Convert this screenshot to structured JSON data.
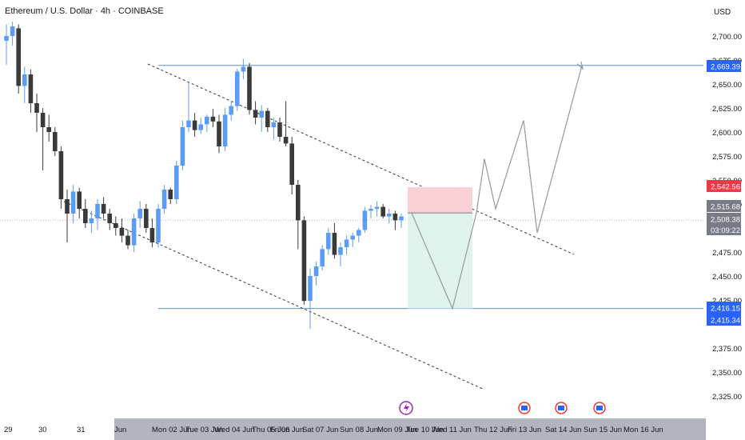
{
  "header": {
    "title": "Ethereum / U.S. Dollar · 4h · COINBASE",
    "currency": "USD"
  },
  "colors": {
    "up": "#5b9cf6",
    "down": "#3a3a3a",
    "level_line": "#5b8fd9",
    "resistance_badge": "#2962ff",
    "price_badge_red": "#f23645",
    "price_badge_gray": "#787b86",
    "short_zone_red": "#f8d2d5",
    "short_zone_green": "#dff2ec"
  },
  "price_axis": {
    "labels": [
      "2,700.00",
      "2,675.00",
      "2,650.00",
      "2,625.00",
      "2,600.00",
      "2,575.00",
      "2,550.00",
      "2,525.00",
      "2,475.00",
      "2,450.00",
      "2,425.00",
      "2,375.00",
      "2,350.00",
      "2,325.00"
    ],
    "badges": [
      {
        "value": 2669.39,
        "text": "2,669.39",
        "color": "#2962ff"
      },
      {
        "value": 2542.56,
        "text": "2,542.56",
        "color": "#f23645"
      },
      {
        "value": 2515.68,
        "text": "2,515.68",
        "color": "#787b86"
      },
      {
        "value": 2508.38,
        "text": "2,508.38",
        "color": "#787b86"
      },
      {
        "value": 2416.15,
        "text": "2,416.15",
        "color": "#2962ff"
      },
      {
        "value": 2415.34,
        "text": "2,415.34",
        "color": "#2962ff"
      }
    ],
    "countdown": "03:09:22"
  },
  "time_axis": {
    "labels": [
      "29",
      "30",
      "31",
      "Jun",
      "Mon 02 Jun",
      "Tue 03 Jun",
      "Wed 04 Jun",
      "Thu 05 Jun",
      "Fri 06 Jun",
      "Sat 07 Jun",
      "Sun 08 Jun",
      "Mon 09 Jun",
      "Tue 10 Jun",
      "Wed 11 Jun",
      "Thu 12 Jun",
      "Fri 13 Jun",
      "Sat 14 Jun",
      "Sun 15 Jun",
      "Mon 16 Jun"
    ]
  },
  "chart_data": {
    "type": "candlestick",
    "title": "Ethereum / U.S. Dollar · 4h · COINBASE",
    "ylabel": "USD",
    "ylim": [
      2305,
      2720
    ],
    "candles": [
      {
        "o": 2695,
        "h": 2712,
        "l": 2670,
        "c": 2700
      },
      {
        "o": 2700,
        "h": 2715,
        "l": 2690,
        "c": 2710
      },
      {
        "o": 2708,
        "h": 2712,
        "l": 2640,
        "c": 2648
      },
      {
        "o": 2648,
        "h": 2668,
        "l": 2630,
        "c": 2660
      },
      {
        "o": 2660,
        "h": 2665,
        "l": 2620,
        "c": 2630
      },
      {
        "o": 2630,
        "h": 2640,
        "l": 2600,
        "c": 2620
      },
      {
        "o": 2620,
        "h": 2625,
        "l": 2560,
        "c": 2605
      },
      {
        "o": 2605,
        "h": 2618,
        "l": 2590,
        "c": 2600
      },
      {
        "o": 2600,
        "h": 2605,
        "l": 2575,
        "c": 2580
      },
      {
        "o": 2580,
        "h": 2585,
        "l": 2520,
        "c": 2530
      },
      {
        "o": 2530,
        "h": 2540,
        "l": 2485,
        "c": 2515
      },
      {
        "o": 2515,
        "h": 2545,
        "l": 2505,
        "c": 2538
      },
      {
        "o": 2538,
        "h": 2542,
        "l": 2510,
        "c": 2520
      },
      {
        "o": 2520,
        "h": 2530,
        "l": 2500,
        "c": 2505
      },
      {
        "o": 2505,
        "h": 2518,
        "l": 2495,
        "c": 2510
      },
      {
        "o": 2510,
        "h": 2530,
        "l": 2498,
        "c": 2525
      },
      {
        "o": 2525,
        "h": 2532,
        "l": 2510,
        "c": 2515
      },
      {
        "o": 2515,
        "h": 2520,
        "l": 2498,
        "c": 2505
      },
      {
        "o": 2505,
        "h": 2512,
        "l": 2492,
        "c": 2500
      },
      {
        "o": 2500,
        "h": 2510,
        "l": 2485,
        "c": 2492
      },
      {
        "o": 2492,
        "h": 2498,
        "l": 2478,
        "c": 2482
      },
      {
        "o": 2482,
        "h": 2515,
        "l": 2475,
        "c": 2510
      },
      {
        "o": 2510,
        "h": 2528,
        "l": 2500,
        "c": 2520
      },
      {
        "o": 2520,
        "h": 2525,
        "l": 2495,
        "c": 2500
      },
      {
        "o": 2500,
        "h": 2510,
        "l": 2480,
        "c": 2485
      },
      {
        "o": 2485,
        "h": 2525,
        "l": 2480,
        "c": 2520
      },
      {
        "o": 2520,
        "h": 2545,
        "l": 2515,
        "c": 2540
      },
      {
        "o": 2540,
        "h": 2542,
        "l": 2525,
        "c": 2530
      },
      {
        "o": 2530,
        "h": 2570,
        "l": 2525,
        "c": 2565
      },
      {
        "o": 2565,
        "h": 2612,
        "l": 2560,
        "c": 2605
      },
      {
        "o": 2605,
        "h": 2652,
        "l": 2600,
        "c": 2612
      },
      {
        "o": 2612,
        "h": 2620,
        "l": 2595,
        "c": 2602
      },
      {
        "o": 2602,
        "h": 2615,
        "l": 2598,
        "c": 2608
      },
      {
        "o": 2608,
        "h": 2618,
        "l": 2600,
        "c": 2616
      },
      {
        "o": 2616,
        "h": 2624,
        "l": 2605,
        "c": 2611
      },
      {
        "o": 2611,
        "h": 2618,
        "l": 2578,
        "c": 2585
      },
      {
        "o": 2585,
        "h": 2625,
        "l": 2580,
        "c": 2618
      },
      {
        "o": 2618,
        "h": 2632,
        "l": 2612,
        "c": 2627
      },
      {
        "o": 2627,
        "h": 2666,
        "l": 2622,
        "c": 2663
      },
      {
        "o": 2663,
        "h": 2676,
        "l": 2655,
        "c": 2668
      },
      {
        "o": 2668,
        "h": 2672,
        "l": 2618,
        "c": 2623
      },
      {
        "o": 2623,
        "h": 2632,
        "l": 2608,
        "c": 2615
      },
      {
        "o": 2615,
        "h": 2628,
        "l": 2600,
        "c": 2622
      },
      {
        "o": 2622,
        "h": 2625,
        "l": 2600,
        "c": 2605
      },
      {
        "o": 2605,
        "h": 2615,
        "l": 2592,
        "c": 2610
      },
      {
        "o": 2610,
        "h": 2615,
        "l": 2590,
        "c": 2595
      },
      {
        "o": 2595,
        "h": 2632,
        "l": 2585,
        "c": 2588
      },
      {
        "o": 2588,
        "h": 2595,
        "l": 2535,
        "c": 2545
      },
      {
        "o": 2545,
        "h": 2550,
        "l": 2478,
        "c": 2508
      },
      {
        "o": 2508,
        "h": 2512,
        "l": 2420,
        "c": 2424
      },
      {
        "o": 2424,
        "h": 2458,
        "l": 2395,
        "c": 2450
      },
      {
        "o": 2450,
        "h": 2465,
        "l": 2440,
        "c": 2460
      },
      {
        "o": 2460,
        "h": 2482,
        "l": 2456,
        "c": 2478
      },
      {
        "o": 2478,
        "h": 2500,
        "l": 2472,
        "c": 2495
      },
      {
        "o": 2495,
        "h": 2505,
        "l": 2468,
        "c": 2472
      },
      {
        "o": 2472,
        "h": 2485,
        "l": 2460,
        "c": 2480
      },
      {
        "o": 2480,
        "h": 2492,
        "l": 2472,
        "c": 2488
      },
      {
        "o": 2488,
        "h": 2495,
        "l": 2480,
        "c": 2492
      },
      {
        "o": 2492,
        "h": 2500,
        "l": 2485,
        "c": 2498
      },
      {
        "o": 2498,
        "h": 2522,
        "l": 2495,
        "c": 2518
      },
      {
        "o": 2518,
        "h": 2524,
        "l": 2510,
        "c": 2520
      },
      {
        "o": 2520,
        "h": 2528,
        "l": 2512,
        "c": 2522
      },
      {
        "o": 2522,
        "h": 2525,
        "l": 2510,
        "c": 2512
      },
      {
        "o": 2512,
        "h": 2520,
        "l": 2505,
        "c": 2515
      },
      {
        "o": 2515,
        "h": 2518,
        "l": 2498,
        "c": 2508
      },
      {
        "o": 2508,
        "h": 2515,
        "l": 2500,
        "c": 2512
      }
    ],
    "levels": [
      {
        "name": "resistance",
        "value": 2669.39
      },
      {
        "name": "support",
        "value": 2416.15
      }
    ],
    "position_box": {
      "entry": 2515.68,
      "stop": 2542.56,
      "target": 2416.15
    },
    "projection": [
      2515.68,
      2416.15,
      2515.68,
      2572,
      2520,
      2612,
      2495,
      2669.39
    ]
  }
}
